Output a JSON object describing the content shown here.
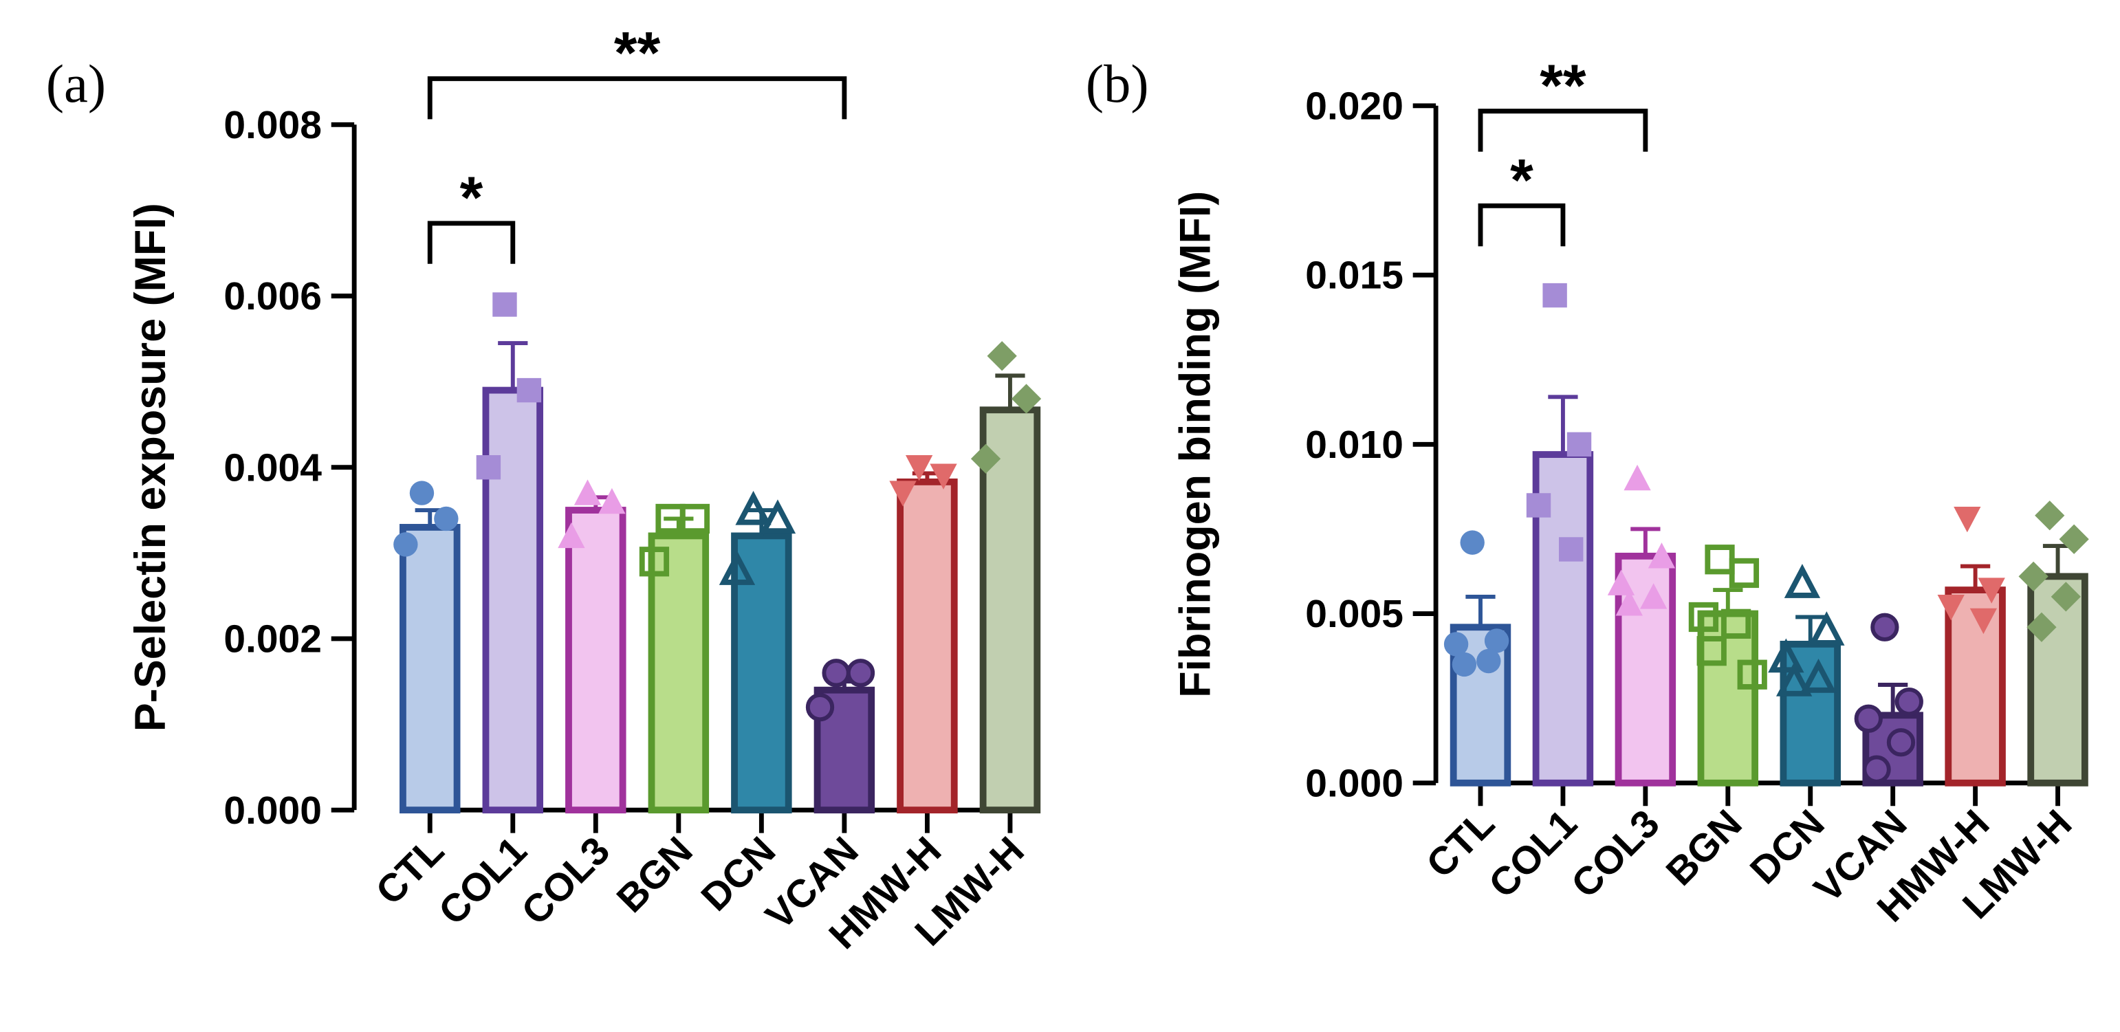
{
  "chart_data": [
    {
      "type": "bar",
      "panel_label": "(a)",
      "y_label": "P-Selectin exposure (MFI)",
      "categories": [
        "CTL",
        "COL1",
        "COL3",
        "BGN",
        "DCN",
        "VCAN",
        "HMW-H",
        "LMW-H"
      ],
      "values": [
        0.0033,
        0.0049,
        0.0035,
        0.0032,
        0.0032,
        0.0014,
        0.00383,
        0.00467
      ],
      "errors": [
        0.0002,
        0.00055,
        0.00015,
        0.0002,
        0.0003,
        0.0001,
        0.0001,
        0.0004
      ],
      "points": [
        [
          0.0037,
          0.0034,
          0.0031
        ],
        [
          0.0059,
          0.0049,
          0.004
        ],
        [
          0.0037,
          0.0036,
          0.0032
        ],
        [
          0.0034,
          0.0034,
          0.0029
        ],
        [
          0.0035,
          0.0034,
          0.0028
        ],
        [
          0.0016,
          0.0016,
          0.0012
        ],
        [
          0.004,
          0.0039,
          0.0037
        ],
        [
          0.0053,
          0.0048,
          0.0041
        ]
      ],
      "colors": [
        "#b8cbe8",
        "#cdc3e8",
        "#f2c4ef",
        "#b8dd8a",
        "#2f87a8",
        "#6e4a9a",
        "#eeb1b1",
        "#c1cfb0"
      ],
      "edge_colors": [
        "#2e5597",
        "#5c3b9a",
        "#a0329c",
        "#5a9a2e",
        "#1b5570",
        "#3b2560",
        "#a3242a",
        "#3f4634"
      ],
      "point_colors": [
        "#5b88c8",
        "#a58cd6",
        "#e99de6",
        "#5a9a2e",
        "#1b5570",
        "#6e4a9a",
        "#e06a6a",
        "#7e9e66"
      ],
      "markers": [
        "circle",
        "square",
        "triangle",
        "square-open",
        "triangle-open",
        "circle",
        "triangle-down",
        "diamond"
      ],
      "ylim": [
        0,
        0.008
      ],
      "yticks": [
        {
          "value": 0,
          "label": "0.000"
        },
        {
          "value": 0.002,
          "label": "0.002"
        },
        {
          "value": 0.004,
          "label": "0.004"
        },
        {
          "value": 0.006,
          "label": "0.006"
        },
        {
          "value": 0.008,
          "label": "0.008"
        }
      ],
      "brackets": [
        {
          "from": 0,
          "to": 1,
          "label": "*"
        },
        {
          "from": 0,
          "to": 5,
          "label": "**"
        }
      ]
    },
    {
      "type": "bar",
      "panel_label": "(b)",
      "y_label": "Fibrinogen binding (MFI)",
      "categories": [
        "CTL",
        "COL1",
        "COL3",
        "BGN",
        "DCN",
        "VCAN",
        "HMW-H",
        "LMW-H"
      ],
      "values": [
        0.0046,
        0.0097,
        0.0067,
        0.005,
        0.0041,
        0.002,
        0.0057,
        0.0061
      ],
      "errors": [
        0.0009,
        0.0017,
        0.0008,
        0.0007,
        0.0008,
        0.0009,
        0.0007,
        0.0009
      ],
      "points": [
        [
          0.0071,
          0.0042,
          0.0041,
          0.0036,
          0.0035
        ],
        [
          0.0144,
          0.01,
          0.0082,
          0.0069
        ],
        [
          0.009,
          0.0067,
          0.0059,
          0.0055,
          0.0053
        ],
        [
          0.0066,
          0.0062,
          0.0049,
          0.0047,
          0.0039,
          0.0032
        ],
        [
          0.0059,
          0.0045,
          0.0037,
          0.0031,
          0.003
        ],
        [
          0.0046,
          0.0024,
          0.0019,
          0.0012,
          0.0004
        ],
        [
          0.0078,
          0.0057,
          0.0052,
          0.0048
        ],
        [
          0.0079,
          0.0072,
          0.0061,
          0.0055,
          0.0046
        ]
      ],
      "colors": [
        "#b8cbe8",
        "#cdc3e8",
        "#f2c4ef",
        "#b8dd8a",
        "#2f87a8",
        "#6e4a9a",
        "#eeb1b1",
        "#c1cfb0"
      ],
      "edge_colors": [
        "#2e5597",
        "#5c3b9a",
        "#a0329c",
        "#5a9a2e",
        "#1b5570",
        "#3b2560",
        "#a3242a",
        "#3f4634"
      ],
      "point_colors": [
        "#5b88c8",
        "#a58cd6",
        "#e99de6",
        "#5a9a2e",
        "#1b5570",
        "#6e4a9a",
        "#e06a6a",
        "#7e9e66"
      ],
      "markers": [
        "circle",
        "square",
        "triangle",
        "square-open",
        "triangle-open",
        "circle",
        "triangle-down",
        "diamond"
      ],
      "ylim": [
        0,
        0.02
      ],
      "yticks": [
        {
          "value": 0,
          "label": "0.000"
        },
        {
          "value": 0.005,
          "label": "0.005"
        },
        {
          "value": 0.01,
          "label": "0.010"
        },
        {
          "value": 0.015,
          "label": "0.015"
        },
        {
          "value": 0.02,
          "label": "0.020"
        }
      ],
      "brackets": [
        {
          "from": 0,
          "to": 1,
          "label": "*"
        },
        {
          "from": 0,
          "to": 2,
          "label": "**"
        }
      ]
    }
  ]
}
